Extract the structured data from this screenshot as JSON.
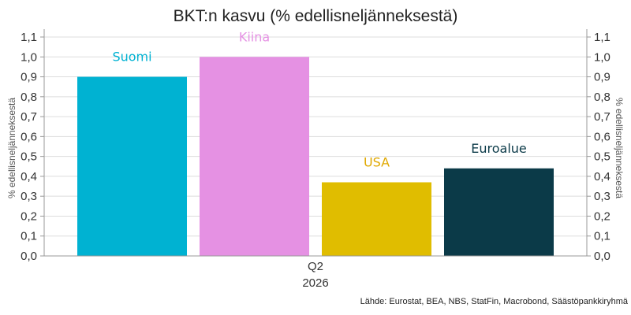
{
  "chart_data": {
    "type": "bar",
    "title": "BKT:n kasvu (% edellisneljänneksestä)",
    "ylabel_left": "% edellisneljänneksestä",
    "ylabel_right": "% edellisneljänneksestä",
    "category_label": "Q2",
    "category_sublabel": "2026",
    "ylim": [
      0,
      1.1
    ],
    "yticks": [
      "0,0",
      "0,1",
      "0,2",
      "0,3",
      "0,4",
      "0,5",
      "0,6",
      "0,7",
      "0,8",
      "0,9",
      "1,0",
      "1,1"
    ],
    "grid": true,
    "series": [
      {
        "name": "Suomi",
        "value": 0.9,
        "color": "#00b2d2",
        "label_color": "#00b2d2"
      },
      {
        "name": "Kiina",
        "value": 1.0,
        "color": "#e591e3",
        "label_color": "#e591e3"
      },
      {
        "name": "USA",
        "value": 0.37,
        "color": "#e0bd00",
        "label_color": "#e0a800"
      },
      {
        "name": "Euroalue",
        "value": 0.44,
        "color": "#0b3a48",
        "label_color": "#0b3a48"
      }
    ],
    "source": "Lähde: Eurostat, BEA, NBS, StatFin, Macrobond, Säästöpankkiryhmä"
  }
}
